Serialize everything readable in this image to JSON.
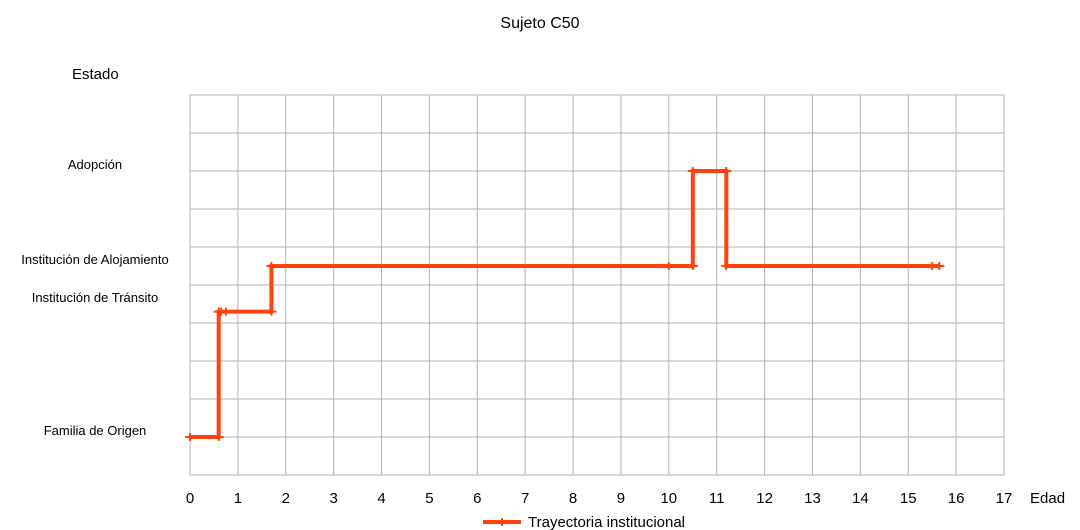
{
  "chart_data": {
    "type": "line",
    "title": "Sujeto C50",
    "xlabel": "Edad",
    "ylabel": "Estado",
    "xlim": [
      0,
      17
    ],
    "x_ticks": [
      0,
      1,
      2,
      3,
      4,
      5,
      6,
      7,
      8,
      9,
      10,
      11,
      12,
      13,
      14,
      15,
      16,
      17
    ],
    "ylim": [
      0,
      10
    ],
    "y_gridlines": [
      0,
      1,
      2,
      3,
      4,
      5,
      6,
      7,
      8,
      9,
      10
    ],
    "y_categories": [
      {
        "label": "Familia de Origen",
        "value": 1
      },
      {
        "label": "Institución de Tránsito",
        "value": 4.5
      },
      {
        "label": "Institución de Alojamiento",
        "value": 5.5
      },
      {
        "label": "Adopción",
        "value": 8
      }
    ],
    "grid": true,
    "legend_position": "bottom",
    "series": [
      {
        "name": "Trayectoria institucional",
        "color": "#ff420e",
        "x": [
          0,
          0.6,
          0.6,
          0.65,
          0.75,
          1.7,
          1.7,
          10.0,
          10.5,
          10.5,
          11.2,
          11.2,
          15.5,
          15.65
        ],
        "y": [
          1,
          1,
          4.3,
          4.3,
          4.3,
          4.3,
          5.5,
          5.5,
          5.5,
          8,
          8,
          5.5,
          5.5,
          5.5
        ]
      }
    ]
  }
}
